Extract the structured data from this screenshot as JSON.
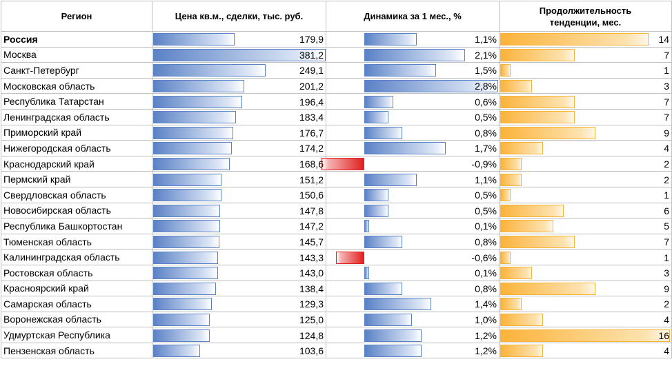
{
  "headers": {
    "region": "Регион",
    "price": "Цена кв.м., сделки, тыс. руб.",
    "dynamics": "Динамика за 1 мес., %",
    "duration": "Продолжительность тенденции, мес."
  },
  "rows": [
    {
      "region": "Россия",
      "price": "179,9",
      "dyn": "1,1%",
      "dur": "14",
      "priceNum": 179.9,
      "dynNum": 1.1,
      "durNum": 14,
      "bold": true
    },
    {
      "region": "Москва",
      "price": "381,2",
      "dyn": "2,1%",
      "dur": "7",
      "priceNum": 381.2,
      "dynNum": 2.1,
      "durNum": 7
    },
    {
      "region": "Санкт-Петербург",
      "price": "249,1",
      "dyn": "1,5%",
      "dur": "1",
      "priceNum": 249.1,
      "dynNum": 1.5,
      "durNum": 1
    },
    {
      "region": "Московская область",
      "price": "201,2",
      "dyn": "2,8%",
      "dur": "3",
      "priceNum": 201.2,
      "dynNum": 2.8,
      "durNum": 3
    },
    {
      "region": "Республика Татарстан",
      "price": "196,4",
      "dyn": "0,6%",
      "dur": "7",
      "priceNum": 196.4,
      "dynNum": 0.6,
      "durNum": 7
    },
    {
      "region": "Ленинградская область",
      "price": "183,4",
      "dyn": "0,5%",
      "dur": "7",
      "priceNum": 183.4,
      "dynNum": 0.5,
      "durNum": 7
    },
    {
      "region": "Приморский край",
      "price": "176,7",
      "dyn": "0,8%",
      "dur": "9",
      "priceNum": 176.7,
      "dynNum": 0.8,
      "durNum": 9
    },
    {
      "region": "Нижегородская область",
      "price": "174,2",
      "dyn": "1,7%",
      "dur": "4",
      "priceNum": 174.2,
      "dynNum": 1.7,
      "durNum": 4
    },
    {
      "region": "Краснодарский край",
      "price": "168,6",
      "dyn": "-0,9%",
      "dur": "2",
      "priceNum": 168.6,
      "dynNum": -0.9,
      "durNum": 2
    },
    {
      "region": "Пермский край",
      "price": "151,2",
      "dyn": "1,1%",
      "dur": "2",
      "priceNum": 151.2,
      "dynNum": 1.1,
      "durNum": 2
    },
    {
      "region": "Свердловская область",
      "price": "150,6",
      "dyn": "0,5%",
      "dur": "1",
      "priceNum": 150.6,
      "dynNum": 0.5,
      "durNum": 1
    },
    {
      "region": "Новосибирская область",
      "price": "147,8",
      "dyn": "0,5%",
      "dur": "6",
      "priceNum": 147.8,
      "dynNum": 0.5,
      "durNum": 6
    },
    {
      "region": "Республика Башкортостан",
      "price": "147,2",
      "dyn": "0,1%",
      "dur": "5",
      "priceNum": 147.2,
      "dynNum": 0.1,
      "durNum": 5
    },
    {
      "region": "Тюменская область",
      "price": "145,7",
      "dyn": "0,8%",
      "dur": "7",
      "priceNum": 145.7,
      "dynNum": 0.8,
      "durNum": 7
    },
    {
      "region": "Калининградская область",
      "price": "143,3",
      "dyn": "-0,6%",
      "dur": "1",
      "priceNum": 143.3,
      "dynNum": -0.6,
      "durNum": 1
    },
    {
      "region": "Ростовская область",
      "price": "143,0",
      "dyn": "0,1%",
      "dur": "3",
      "priceNum": 143.0,
      "dynNum": 0.1,
      "durNum": 3
    },
    {
      "region": "Красноярский край",
      "price": "138,4",
      "dyn": "0,8%",
      "dur": "9",
      "priceNum": 138.4,
      "dynNum": 0.8,
      "durNum": 9
    },
    {
      "region": "Самарская область",
      "price": "129,3",
      "dyn": "1,4%",
      "dur": "2",
      "priceNum": 129.3,
      "dynNum": 1.4,
      "durNum": 2
    },
    {
      "region": "Воронежская область",
      "price": "125,0",
      "dyn": "1,0%",
      "dur": "4",
      "priceNum": 125.0,
      "dynNum": 1.0,
      "durNum": 4
    },
    {
      "region": "Удмуртская Республика",
      "price": "124,8",
      "dyn": "1,2%",
      "dur": "16",
      "priceNum": 124.8,
      "dynNum": 1.2,
      "durNum": 16
    },
    {
      "region": "Пензенская область",
      "price": "103,6",
      "dyn": "1,2%",
      "dur": "4",
      "priceNum": 103.6,
      "dynNum": 1.2,
      "durNum": 4
    }
  ],
  "colors": {
    "price_bar": "#5b82c6",
    "positive_bar": "#5b82c6",
    "negative_bar": "#e02020",
    "duration_bar": "#f9b233"
  }
}
